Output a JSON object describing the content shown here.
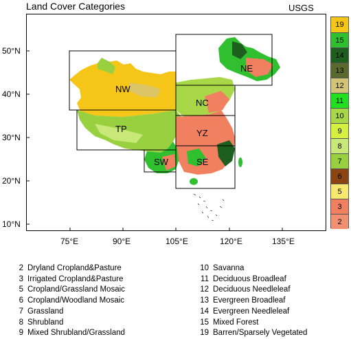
{
  "title": "Land Cover Categories",
  "source": "USGS",
  "lat_ticks": [
    "50°N",
    "40°N",
    "30°N",
    "20°N",
    "10°N"
  ],
  "lon_ticks": [
    "75°E",
    "90°E",
    "105°E",
    "120°E",
    "135°E"
  ],
  "regions": [
    "NW",
    "NE",
    "NC",
    "TP",
    "YZ",
    "SW",
    "SE"
  ],
  "colorbar": [
    {
      "value": "19",
      "color": "#F5C518"
    },
    {
      "value": "15",
      "color": "#2FBF2F"
    },
    {
      "value": "14",
      "color": "#1E5E1E"
    },
    {
      "value": "13",
      "color": "#5A6A2E"
    },
    {
      "value": "12",
      "color": "#D4C47A"
    },
    {
      "value": "11",
      "color": "#20E020"
    },
    {
      "value": "10",
      "color": "#A8D848"
    },
    {
      "value": "9",
      "color": "#D6F040"
    },
    {
      "value": "8",
      "color": "#C8E878"
    },
    {
      "value": "7",
      "color": "#98D040"
    },
    {
      "value": "6",
      "color": "#8B4513"
    },
    {
      "value": "5",
      "color": "#F8E870"
    },
    {
      "value": "3",
      "color": "#F08060"
    },
    {
      "value": "2",
      "color": "#F09070"
    }
  ],
  "legend_left": [
    {
      "num": "2",
      "text": "Dryland Cropland&Pasture"
    },
    {
      "num": "3",
      "text": "Irrigated Cropland&Pasture"
    },
    {
      "num": "5",
      "text": "Cropland/Grassland Mosaic"
    },
    {
      "num": "6",
      "text": "Cropland/Woodland Mosaic"
    },
    {
      "num": "7",
      "text": "Grassland"
    },
    {
      "num": "8",
      "text": "Shrubland"
    },
    {
      "num": "9",
      "text": "Mixed Shrubland/Grassland"
    }
  ],
  "legend_right": [
    {
      "num": "10",
      "text": "Savanna"
    },
    {
      "num": "11",
      "text": "Deciduous Broadleaf"
    },
    {
      "num": "12",
      "text": "Deciduous Needleleaf"
    },
    {
      "num": "13",
      "text": "Evergreen Broadleaf"
    },
    {
      "num": "14",
      "text": "Evergreen Needleleaf"
    },
    {
      "num": "15",
      "text": "Mixed Forest"
    },
    {
      "num": "19",
      "text": "Barren/Sparsely Vegetated"
    }
  ]
}
